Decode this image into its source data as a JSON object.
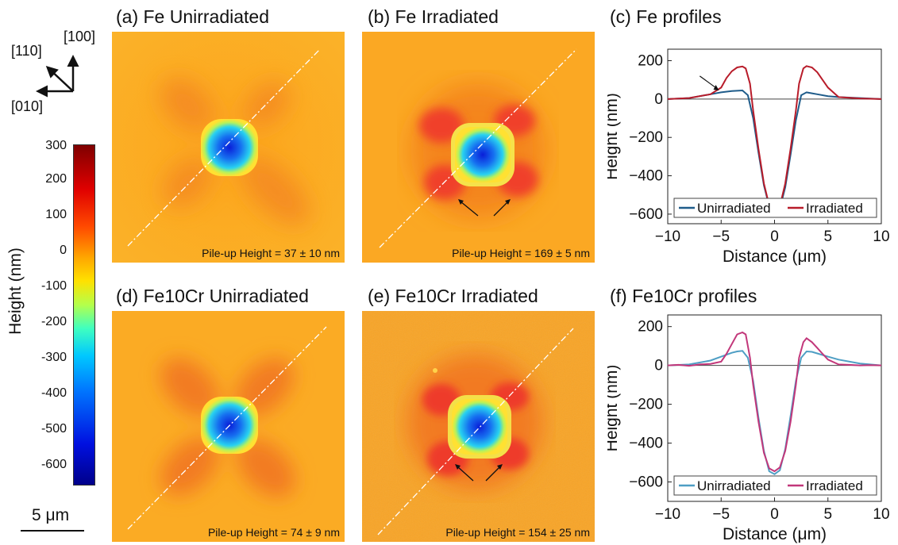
{
  "panels": {
    "a": {
      "title": "(a) Fe Unirradiated",
      "pileup": "Pile-up Height = 37 ± 10 nm"
    },
    "b": {
      "title": "(b) Fe Irradiated",
      "pileup": "Pile-up Height = 169 ± 5 nm"
    },
    "c": {
      "title": "(c) Fe profiles"
    },
    "d": {
      "title": "(d) Fe10Cr Unirradiated",
      "pileup": "Pile-up Height = 74 ± 9 nm"
    },
    "e": {
      "title": "(e) Fe10Cr Irradiated",
      "pileup": "Pile-up Height = 154 ± 25 nm"
    },
    "f": {
      "title": "(f) Fe10Cr profiles"
    }
  },
  "orientation": {
    "dir1": "[100]",
    "dir2": "[110]",
    "dir3": "[010]"
  },
  "colorbar": {
    "label": "Height (nm)",
    "ticks": [
      "300",
      "200",
      "100",
      "0",
      "-100",
      "-200",
      "-300",
      "-400",
      "-500",
      "-600"
    ],
    "range": [
      -650,
      300
    ]
  },
  "scalebar": {
    "label": "5 μm"
  },
  "chart_data": [
    {
      "type": "line",
      "title": "(c) Fe profiles",
      "xlabel": "Distance (μm)",
      "ylabel": "Height (nm)",
      "xlim": [
        -10,
        10
      ],
      "ylim": [
        -650,
        260
      ],
      "xticks": [
        -10,
        -5,
        0,
        5,
        10
      ],
      "yticks": [
        -600,
        -400,
        -200,
        0,
        200
      ],
      "legend": "bottom",
      "series": [
        {
          "name": "Unirradiated",
          "color": "#1f5c8a",
          "x": [
            -10,
            -8,
            -6,
            -5,
            -4,
            -3,
            -2.5,
            -2,
            -1.5,
            -1,
            -0.5,
            0,
            0.5,
            1,
            1.5,
            2,
            2.5,
            3,
            3.5,
            4,
            5,
            6,
            8,
            10
          ],
          "y": [
            0,
            5,
            25,
            35,
            42,
            45,
            20,
            -100,
            -280,
            -450,
            -560,
            -605,
            -570,
            -460,
            -290,
            -110,
            20,
            35,
            30,
            25,
            15,
            10,
            5,
            0
          ]
        },
        {
          "name": "Irradiated",
          "color": "#b81c2a",
          "x": [
            -10,
            -8,
            -6,
            -5,
            -4.5,
            -4,
            -3.5,
            -3,
            -2.7,
            -2.3,
            -2,
            -1.5,
            -1,
            -0.5,
            0,
            0.5,
            1,
            1.5,
            2,
            2.3,
            2.7,
            3,
            3.5,
            4,
            4.5,
            5,
            6,
            8,
            10
          ],
          "y": [
            0,
            5,
            25,
            60,
            110,
            145,
            165,
            170,
            160,
            80,
            -60,
            -260,
            -440,
            -555,
            -600,
            -560,
            -440,
            -260,
            -60,
            80,
            160,
            172,
            165,
            140,
            100,
            60,
            10,
            3,
            0
          ]
        }
      ]
    },
    {
      "type": "line",
      "title": "(f) Fe10Cr profiles",
      "xlabel": "Distance (μm)",
      "ylabel": "Height (nm)",
      "xlim": [
        -10,
        10
      ],
      "ylim": [
        -700,
        260
      ],
      "xticks": [
        -10,
        -5,
        0,
        5,
        10
      ],
      "yticks": [
        -600,
        -400,
        -200,
        0,
        200
      ],
      "legend": "bottom",
      "series": [
        {
          "name": "Unirradiated",
          "color": "#4e9ec4",
          "x": [
            -10,
            -8,
            -6,
            -5,
            -4,
            -3.5,
            -3,
            -2.5,
            -2,
            -1.5,
            -1,
            -0.5,
            0,
            0.5,
            1,
            1.5,
            2,
            2.5,
            3,
            3.5,
            4,
            5,
            6,
            8,
            10
          ],
          "y": [
            0,
            5,
            25,
            45,
            65,
            72,
            75,
            40,
            -80,
            -270,
            -440,
            -545,
            -560,
            -540,
            -430,
            -260,
            -80,
            40,
            72,
            70,
            62,
            45,
            30,
            10,
            0
          ]
        },
        {
          "name": "Irradiated",
          "color": "#c2377a",
          "x": [
            -10,
            -9,
            -8,
            -7,
            -6,
            -5,
            -4.5,
            -4,
            -3.5,
            -3,
            -2.7,
            -2.3,
            -2,
            -1.5,
            -1,
            -0.5,
            0,
            0.5,
            1,
            1.5,
            2,
            2.3,
            2.7,
            3,
            3.5,
            4,
            4.5,
            5,
            6,
            7,
            8,
            9,
            10
          ],
          "y": [
            0,
            3,
            -2,
            5,
            8,
            20,
            60,
            110,
            160,
            170,
            160,
            40,
            -100,
            -290,
            -450,
            -530,
            -545,
            -525,
            -440,
            -290,
            -100,
            40,
            120,
            140,
            120,
            90,
            60,
            30,
            5,
            3,
            0,
            2,
            0
          ]
        }
      ]
    }
  ]
}
